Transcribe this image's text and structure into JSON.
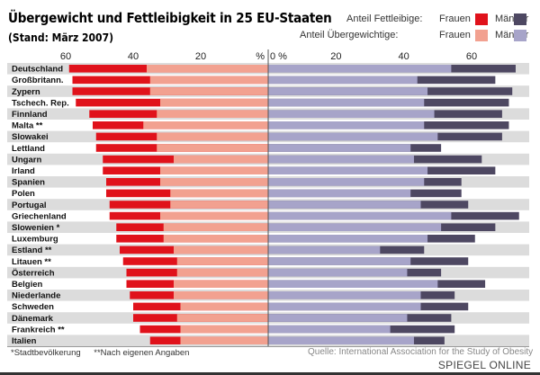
{
  "title": "Übergewicht und Fettleibigkeit in 25 EU-Staaten",
  "subtitle": "(Stand: März 2007)",
  "legend": {
    "row1_label": "Anteil Fettleibige:",
    "row2_label": "Anteil Übergewichtige:",
    "women": "Frauen",
    "men": "Männer"
  },
  "colors": {
    "obese_women": "#e0121b",
    "overweight_women": "#f2a190",
    "obese_men": "#4e4862",
    "overweight_men": "#a7a4c9",
    "row_stripe": "#dcdcdc"
  },
  "footnotes": {
    "star1": "*Stadtbevölkerung",
    "star2": "**Nach eigenen Angaben"
  },
  "source": "Quelle: International Association for the Study of Obesity",
  "brand": "SPIEGEL ONLINE",
  "chart_data": {
    "type": "bar",
    "orientation": "horizontal-diverging",
    "unit": "%",
    "axis": {
      "women_ticks": [
        "60",
        "40",
        "20",
        "%"
      ],
      "men_ticks": [
        "0 %",
        "20",
        "40",
        "60"
      ],
      "xlim": [
        0,
        75
      ]
    },
    "categories": [
      "Deutschland",
      "Großbritann.",
      "Zypern",
      "Tschech. Rep.",
      "Finnland",
      "Malta **",
      "Slowakei",
      "Lettland",
      "Ungarn",
      "Irland",
      "Spanien",
      "Polen",
      "Portugal",
      "Griechenland",
      "Slowenien *",
      "Luxemburg",
      "Estland **",
      "Litauen **",
      "Österreich",
      "Belgien",
      "Niederlande",
      "Schweden",
      "Dänemark",
      "Frankreich **",
      "Italien"
    ],
    "series": [
      {
        "name": "Anteil Übergewichtige: Frauen",
        "values": [
          59,
          58,
          58,
          57,
          53,
          52,
          51,
          51,
          49,
          49,
          48,
          48,
          47,
          47,
          45,
          45,
          44,
          43,
          42,
          42,
          41,
          40,
          40,
          38,
          35
        ]
      },
      {
        "name": "Anteil Fettleibige: Frauen",
        "values": [
          36,
          35,
          35,
          32,
          33,
          37,
          33,
          33,
          28,
          32,
          32,
          29,
          29,
          32,
          31,
          31,
          28,
          27,
          27,
          28,
          28,
          26,
          27,
          26,
          26
        ]
      },
      {
        "name": "Anteil Übergewichtige: Männer",
        "values": [
          73,
          67,
          72,
          71,
          69,
          71,
          69,
          51,
          63,
          67,
          57,
          57,
          59,
          74,
          67,
          61,
          46,
          59,
          51,
          64,
          55,
          59,
          54,
          55,
          52
        ]
      },
      {
        "name": "Anteil Fettleibige: Männer",
        "values": [
          54,
          44,
          47,
          46,
          49,
          46,
          50,
          42,
          43,
          47,
          46,
          42,
          45,
          54,
          51,
          47,
          33,
          42,
          41,
          50,
          45,
          45,
          41,
          36,
          43
        ]
      }
    ]
  }
}
